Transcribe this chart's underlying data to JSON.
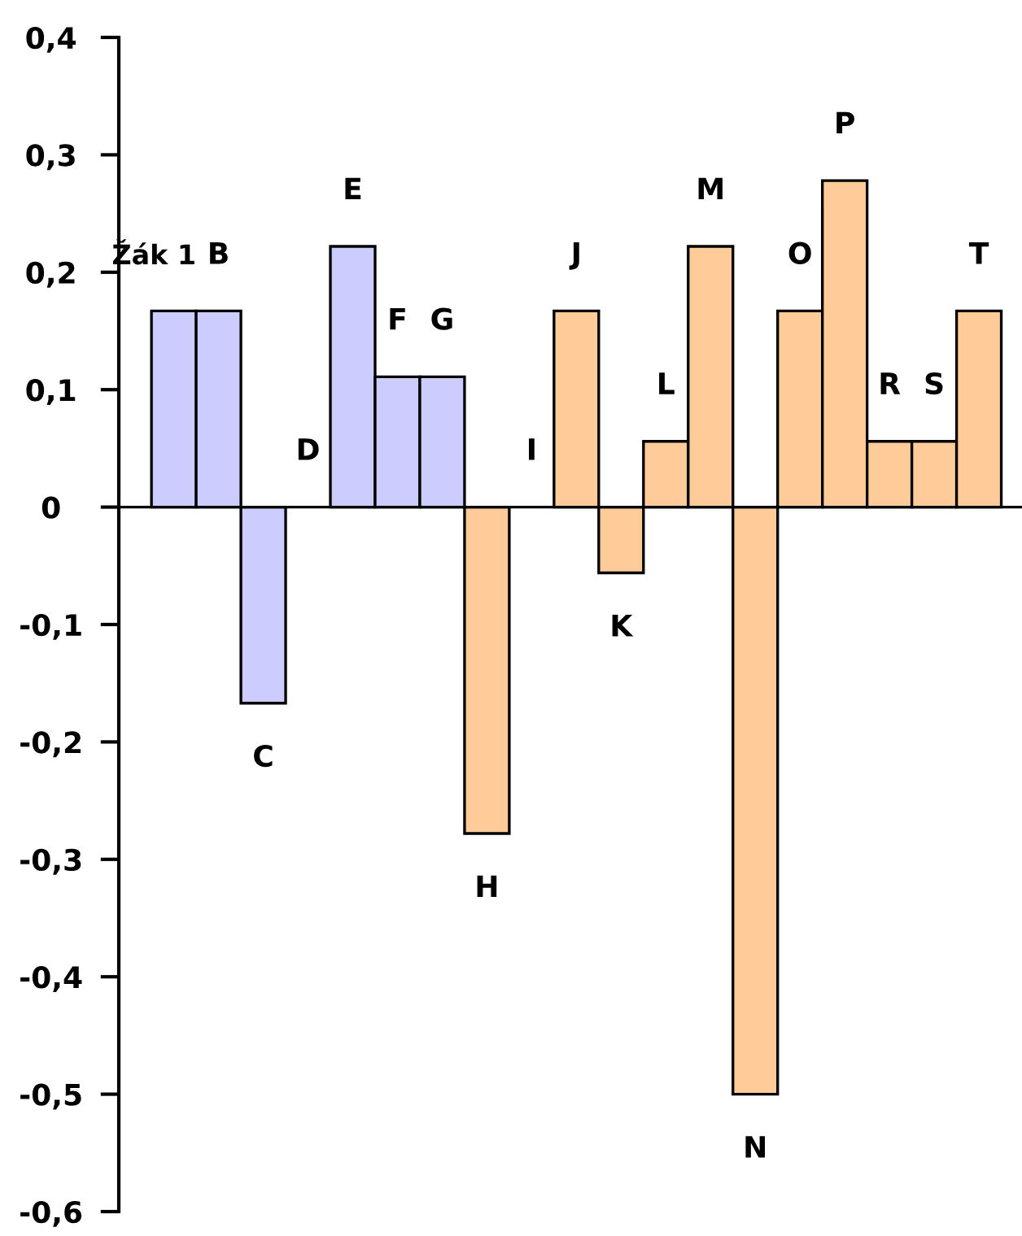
{
  "chart_data": {
    "type": "bar",
    "categories": [
      "Žák 1",
      "B",
      "C",
      "D",
      "E",
      "F",
      "G",
      "H",
      "I",
      "J",
      "K",
      "L",
      "M",
      "N",
      "O",
      "P",
      "R",
      "S",
      "T"
    ],
    "values": [
      0.167,
      0.167,
      -0.167,
      0,
      0.222,
      0.111,
      0.111,
      -0.278,
      0,
      0.167,
      -0.056,
      0.056,
      0.222,
      -0.5,
      0.167,
      0.278,
      0.056,
      0.056,
      0.167
    ],
    "colors": [
      "#ccccff",
      "#ccccff",
      "#ccccff",
      "#ccccff",
      "#ccccff",
      "#ccccff",
      "#ccccff",
      "#ffcc99",
      "#ffcc99",
      "#ffcc99",
      "#ffcc99",
      "#ffcc99",
      "#ffcc99",
      "#ffcc99",
      "#ffcc99",
      "#ffcc99",
      "#ffcc99",
      "#ffcc99",
      "#ffcc99"
    ],
    "ylim": [
      -0.6,
      0.4
    ],
    "yticks": [
      {
        "value": -0.6,
        "label": "-0,6"
      },
      {
        "value": -0.5,
        "label": "-0,5"
      },
      {
        "value": -0.4,
        "label": "-0,4"
      },
      {
        "value": -0.3,
        "label": "-0,3"
      },
      {
        "value": -0.2,
        "label": "-0,2"
      },
      {
        "value": -0.1,
        "label": "-0,1"
      },
      {
        "value": 0,
        "label": "0"
      },
      {
        "value": 0.1,
        "label": "0,1"
      },
      {
        "value": 0.2,
        "label": "0,2"
      },
      {
        "value": 0.3,
        "label": "0,3"
      },
      {
        "value": 0.4,
        "label": "0,4"
      }
    ],
    "legend": false
  }
}
